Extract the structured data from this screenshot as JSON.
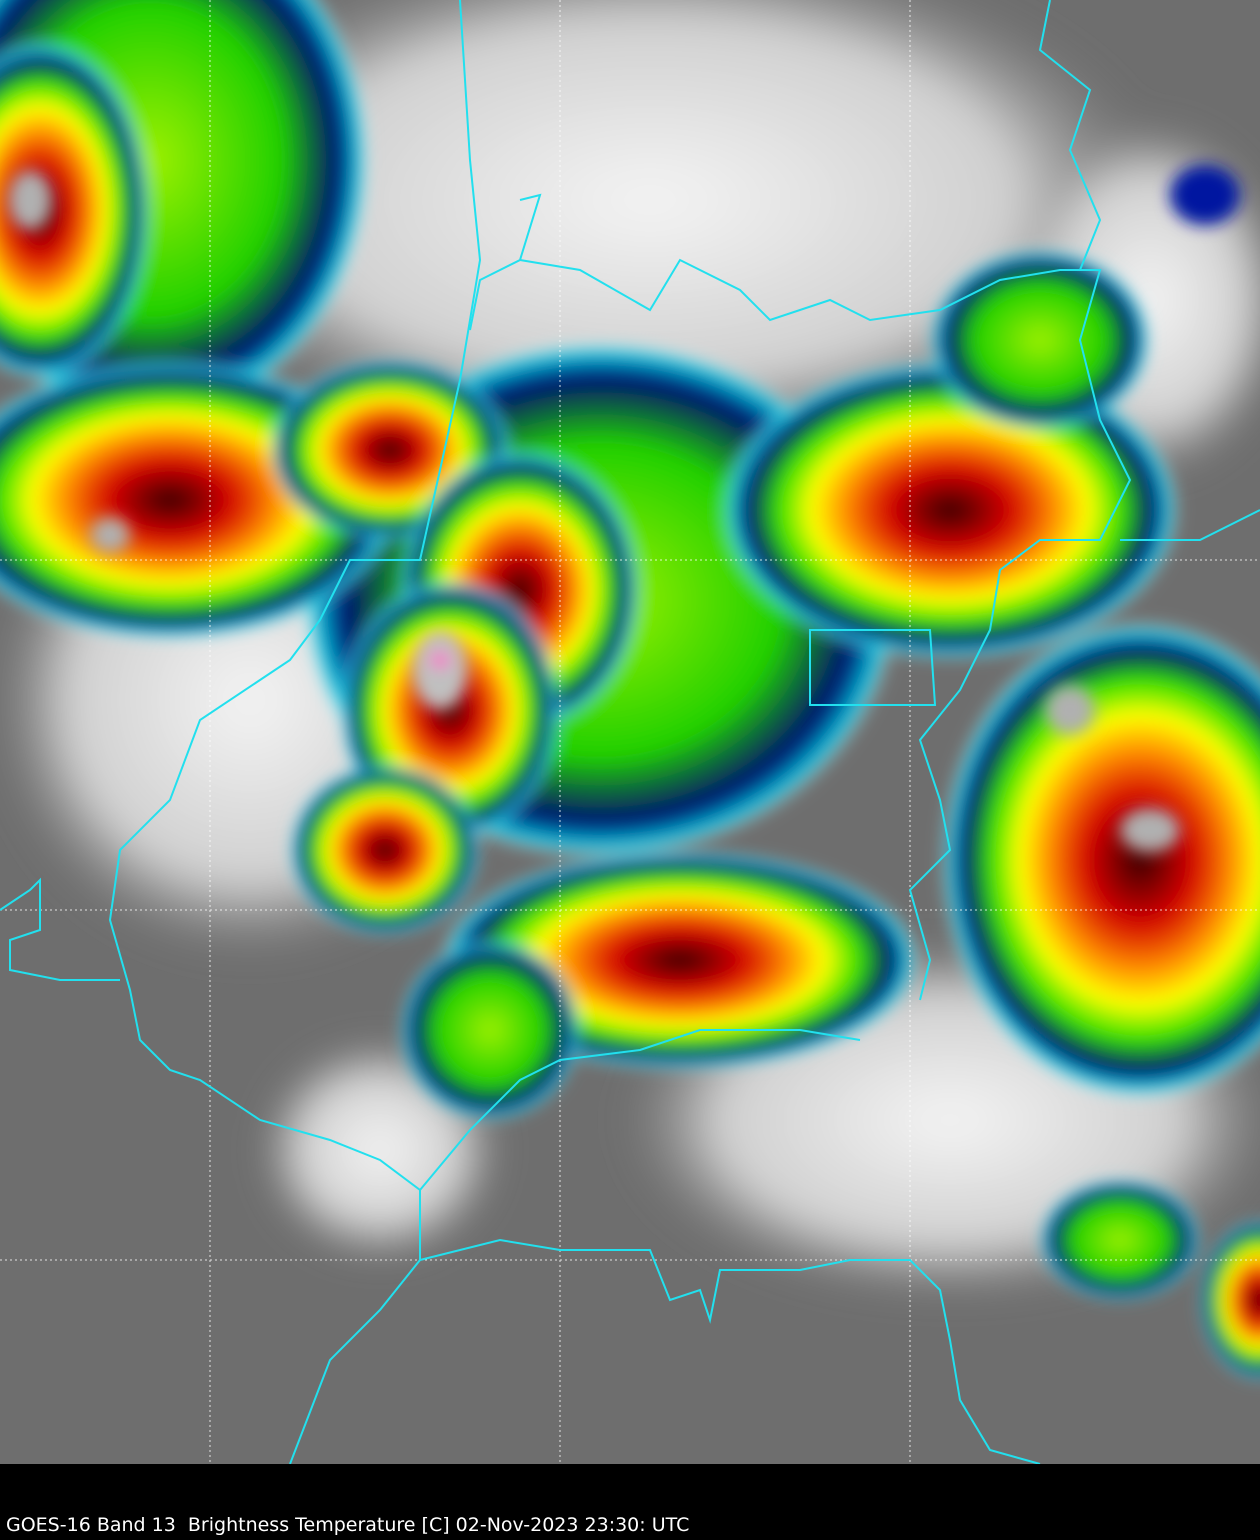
{
  "caption": "GOES-16 Band 13  Brightness Temperature [C] 02-Nov-2023 23:30: UTC",
  "colors": {
    "background": "#000000",
    "border_lines": "#22e0ee",
    "graticule": "#ffffff",
    "clear_sky": "#6e6e6e",
    "cold_cloud_scale": [
      "#ffffff",
      "#00e5ff",
      "#00008b",
      "#00ff00",
      "#ffff00",
      "#ff8c00",
      "#ff0000",
      "#400000",
      "#b0b0b0",
      "#ff66cc"
    ]
  }
}
